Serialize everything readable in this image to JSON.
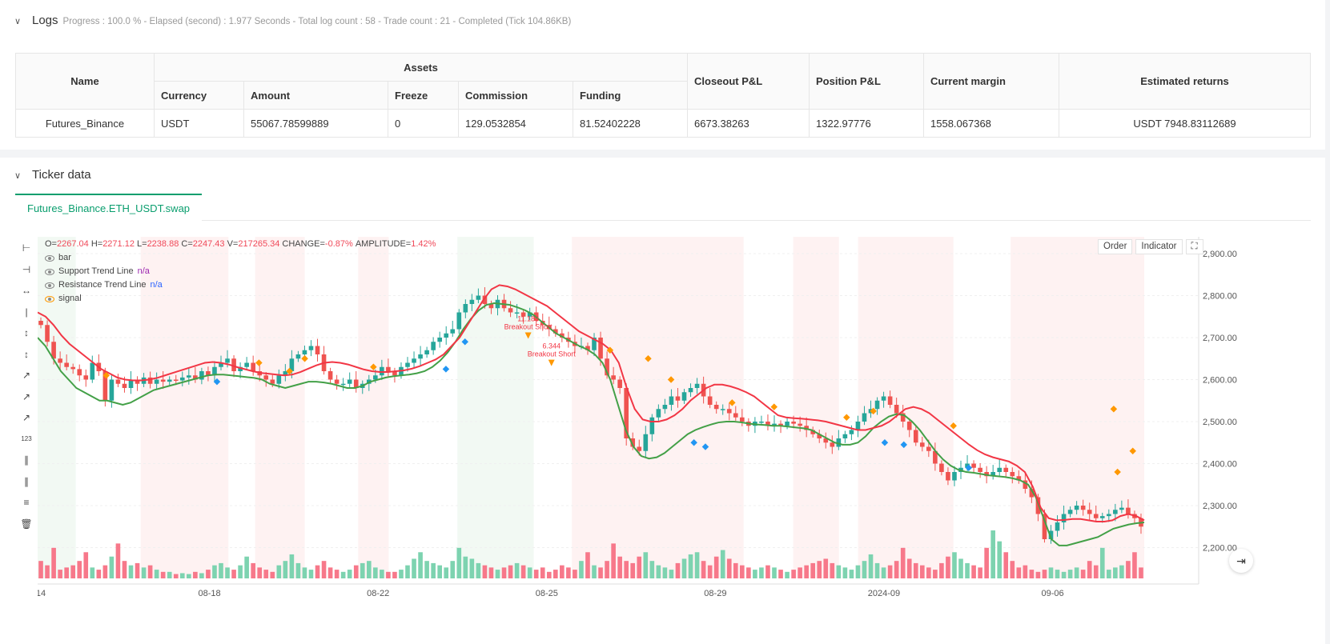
{
  "logs": {
    "title": "Logs",
    "summary": "Progress : 100.0 % - Elapsed (second) : 1.977  Seconds - Total log count : 58 - Trade count : 21 - Completed (Tick 104.86KB)"
  },
  "assets_table": {
    "headers": {
      "name": "Name",
      "assets": "Assets",
      "currency": "Currency",
      "amount": "Amount",
      "freeze": "Freeze",
      "commission": "Commission",
      "funding": "Funding",
      "closeout_pl": "Closeout P&L",
      "position_pl": "Position P&L",
      "current_margin": "Current margin",
      "estimated_returns": "Estimated returns"
    },
    "row": {
      "name": "Futures_Binance",
      "currency": "USDT",
      "amount": "55067.78599889",
      "freeze": "0",
      "commission": "129.0532854",
      "funding": "81.52402228",
      "closeout_pl": "6673.38263",
      "position_pl": "1322.97776",
      "current_margin": "1558.067368",
      "estimated_returns": "USDT 7948.83112689"
    }
  },
  "ticker": {
    "title": "Ticker data",
    "tab": "Futures_Binance.ETH_USDT.swap"
  },
  "chart_legend": {
    "ohlc": {
      "o_label": "O=",
      "o": "2267.04",
      "h_label": "H=",
      "h": "2271.12",
      "l_label": "L=",
      "l": "2238.88",
      "c_label": "C=",
      "c": "2247.43",
      "v_label": "V=",
      "v": "217265.34",
      "change_label": "CHANGE=",
      "change": "-0.87%",
      "amp_label": "AMPLITUDE=",
      "amp": "1.42%"
    },
    "bar": "bar",
    "support": "Support Trend Line",
    "support_val": "n/a",
    "resistance": "Resistance Trend Line",
    "resistance_val": "n/a",
    "signal": "signal"
  },
  "chart_buttons": {
    "order": "Order",
    "indicator": "Indicator"
  },
  "colors": {
    "up": "#26a69a",
    "down": "#ef5350",
    "support": "#43a047",
    "resistance": "#f23645",
    "signal_orange": "#ff9800",
    "signal_blue": "#2196f3",
    "accent": "#0a9e6e"
  },
  "chart_data": {
    "type": "candlestick",
    "y_ticks": [
      "2,900.00",
      "2,800.00",
      "2,700.00",
      "2,600.00",
      "2,500.00",
      "2,400.00",
      "2,300.00",
      "2,200.00"
    ],
    "y_tick_values": [
      2900,
      2800,
      2700,
      2600,
      2500,
      2400,
      2300,
      2200
    ],
    "ylim": [
      2140,
      2940
    ],
    "x_ticks": [
      "14",
      "08-18",
      "08-22",
      "08-25",
      "08-29",
      "2024-09",
      "09-06"
    ],
    "x_tick_index": [
      0,
      32,
      64,
      96,
      128,
      160,
      192
    ],
    "closes": [
      2730,
      2690,
      2650,
      2640,
      2630,
      2625,
      2610,
      2600,
      2640,
      2620,
      2550,
      2600,
      2590,
      2580,
      2600,
      2590,
      2605,
      2590,
      2600,
      2595,
      2600,
      2598,
      2605,
      2610,
      2600,
      2620,
      2610,
      2630,
      2640,
      2650,
      2620,
      2630,
      2640,
      2620,
      2610,
      2600,
      2590,
      2610,
      2620,
      2650,
      2660,
      2670,
      2680,
      2660,
      2620,
      2600,
      2590,
      2590,
      2600,
      2580,
      2590,
      2600,
      2610,
      2630,
      2620,
      2610,
      2630,
      2640,
      2650,
      2660,
      2670,
      2690,
      2700,
      2710,
      2720,
      2760,
      2780,
      2790,
      2800,
      2780,
      2770,
      2790,
      2770,
      2760,
      2760,
      2750,
      2760,
      2740,
      2730,
      2720,
      2710,
      2700,
      2690,
      2680,
      2680,
      2670,
      2700,
      2650,
      2610,
      2600,
      2580,
      2460,
      2440,
      2430,
      2470,
      2510,
      2530,
      2540,
      2560,
      2550,
      2570,
      2580,
      2590,
      2560,
      2540,
      2530,
      2530,
      2520,
      2510,
      2500,
      2490,
      2500,
      2500,
      2490,
      2495,
      2490,
      2500,
      2495,
      2490,
      2480,
      2470,
      2460,
      2450,
      2440,
      2460,
      2470,
      2480,
      2500,
      2520,
      2530,
      2550,
      2560,
      2540,
      2520,
      2500,
      2480,
      2450,
      2440,
      2430,
      2400,
      2380,
      2360,
      2380,
      2390,
      2400,
      2390,
      2380,
      2370,
      2380,
      2390,
      2380,
      2370,
      2360,
      2340,
      2320,
      2280,
      2220,
      2240,
      2260,
      2280,
      2290,
      2300,
      2290,
      2280,
      2270,
      2275,
      2280,
      2290,
      2295,
      2280,
      2270,
      2250
    ],
    "support": [
      2700,
      2680,
      2650,
      2620,
      2600,
      2580,
      2570,
      2560,
      2550,
      2550,
      2545,
      2540,
      2545,
      2555,
      2565,
      2575,
      2580,
      2585,
      2590,
      2595,
      2600,
      2605,
      2610,
      2612,
      2612,
      2610,
      2608,
      2606,
      2604,
      2600,
      2590,
      2585,
      2580,
      2585,
      2590,
      2595,
      2595,
      2593,
      2590,
      2585,
      2580,
      2580,
      2585,
      2595,
      2600,
      2605,
      2608,
      2610,
      2612,
      2615,
      2620,
      2630,
      2645,
      2665,
      2690,
      2720,
      2745,
      2765,
      2778,
      2782,
      2780,
      2778,
      2772,
      2765,
      2755,
      2740,
      2725,
      2710,
      2700,
      2690,
      2680,
      2672,
      2660,
      2640,
      2600,
      2540,
      2480,
      2440,
      2418,
      2412,
      2415,
      2425,
      2440,
      2455,
      2470,
      2480,
      2487,
      2493,
      2498,
      2500,
      2500,
      2498,
      2495,
      2493,
      2492,
      2490,
      2490,
      2488,
      2486,
      2484,
      2480,
      2470,
      2460,
      2450,
      2445,
      2445,
      2450,
      2465,
      2485,
      2500,
      2512,
      2518,
      2515,
      2500,
      2480,
      2455,
      2430,
      2410,
      2395,
      2385,
      2380,
      2378,
      2375,
      2372,
      2370,
      2368,
      2365,
      2360,
      2350,
      2320,
      2270,
      2220,
      2205,
      2205,
      2210,
      2215,
      2220,
      2225,
      2235,
      2245,
      2250,
      2255,
      2258,
      2260
    ],
    "resistance": [
      2760,
      2750,
      2730,
      2705,
      2685,
      2670,
      2655,
      2640,
      2625,
      2615,
      2605,
      2600,
      2598,
      2598,
      2600,
      2604,
      2610,
      2616,
      2622,
      2628,
      2634,
      2640,
      2642,
      2640,
      2636,
      2630,
      2625,
      2620,
      2616,
      2614,
      2612,
      2610,
      2612,
      2618,
      2626,
      2634,
      2640,
      2642,
      2640,
      2636,
      2630,
      2624,
      2620,
      2618,
      2618,
      2620,
      2622,
      2626,
      2632,
      2640,
      2648,
      2660,
      2680,
      2700,
      2730,
      2760,
      2790,
      2815,
      2825,
      2822,
      2815,
      2805,
      2795,
      2785,
      2775,
      2760,
      2745,
      2730,
      2715,
      2705,
      2695,
      2685,
      2670,
      2640,
      2580,
      2530,
      2505,
      2500,
      2500,
      2505,
      2515,
      2530,
      2550,
      2565,
      2580,
      2588,
      2588,
      2584,
      2578,
      2570,
      2560,
      2545,
      2530,
      2515,
      2510,
      2508,
      2507,
      2505,
      2503,
      2500,
      2495,
      2490,
      2485,
      2480,
      2480,
      2485,
      2490,
      2500,
      2515,
      2530,
      2535,
      2530,
      2520,
      2505,
      2490,
      2475,
      2460,
      2445,
      2432,
      2422,
      2415,
      2410,
      2405,
      2395,
      2380,
      2345,
      2295,
      2270,
      2265,
      2266,
      2268,
      2268,
      2265,
      2262,
      2262,
      2265,
      2275,
      2280,
      2275,
      2265
    ],
    "volumes": [
      40,
      30,
      70,
      20,
      25,
      30,
      40,
      60,
      25,
      20,
      30,
      50,
      80,
      40,
      30,
      35,
      25,
      30,
      20,
      15,
      15,
      10,
      12,
      10,
      15,
      12,
      20,
      30,
      35,
      25,
      20,
      30,
      50,
      35,
      25,
      20,
      15,
      30,
      40,
      55,
      35,
      25,
      20,
      30,
      40,
      25,
      20,
      15,
      20,
      30,
      35,
      40,
      25,
      20,
      15,
      15,
      20,
      30,
      45,
      60,
      40,
      35,
      30,
      25,
      40,
      70,
      50,
      45,
      35,
      30,
      25,
      20,
      25,
      30,
      35,
      30,
      25,
      20,
      25,
      15,
      20,
      30,
      25,
      20,
      40,
      60,
      30,
      25,
      40,
      80,
      50,
      40,
      35,
      50,
      60,
      40,
      30,
      25,
      20,
      35,
      45,
      55,
      60,
      40,
      30,
      50,
      65,
      45,
      35,
      30,
      25,
      20,
      25,
      30,
      25,
      20,
      15,
      20,
      25,
      30,
      35,
      40,
      45,
      35,
      30,
      25,
      20,
      30,
      40,
      55,
      35,
      25,
      30,
      40,
      70,
      45,
      35,
      30,
      25,
      20,
      35,
      50,
      60,
      45,
      35,
      30,
      25,
      70,
      110,
      85,
      60,
      40,
      25,
      30,
      20,
      15,
      20,
      25,
      20,
      15,
      20,
      25,
      20
    ],
    "signals": [
      {
        "kind": "orange",
        "index": 76,
        "price": 2665,
        "label": "11.183",
        "label2": "Breakout Short"
      },
      {
        "kind": "orange",
        "index": 80,
        "price": 2600,
        "label": "6.344",
        "label2": "Breakout Short"
      }
    ]
  }
}
